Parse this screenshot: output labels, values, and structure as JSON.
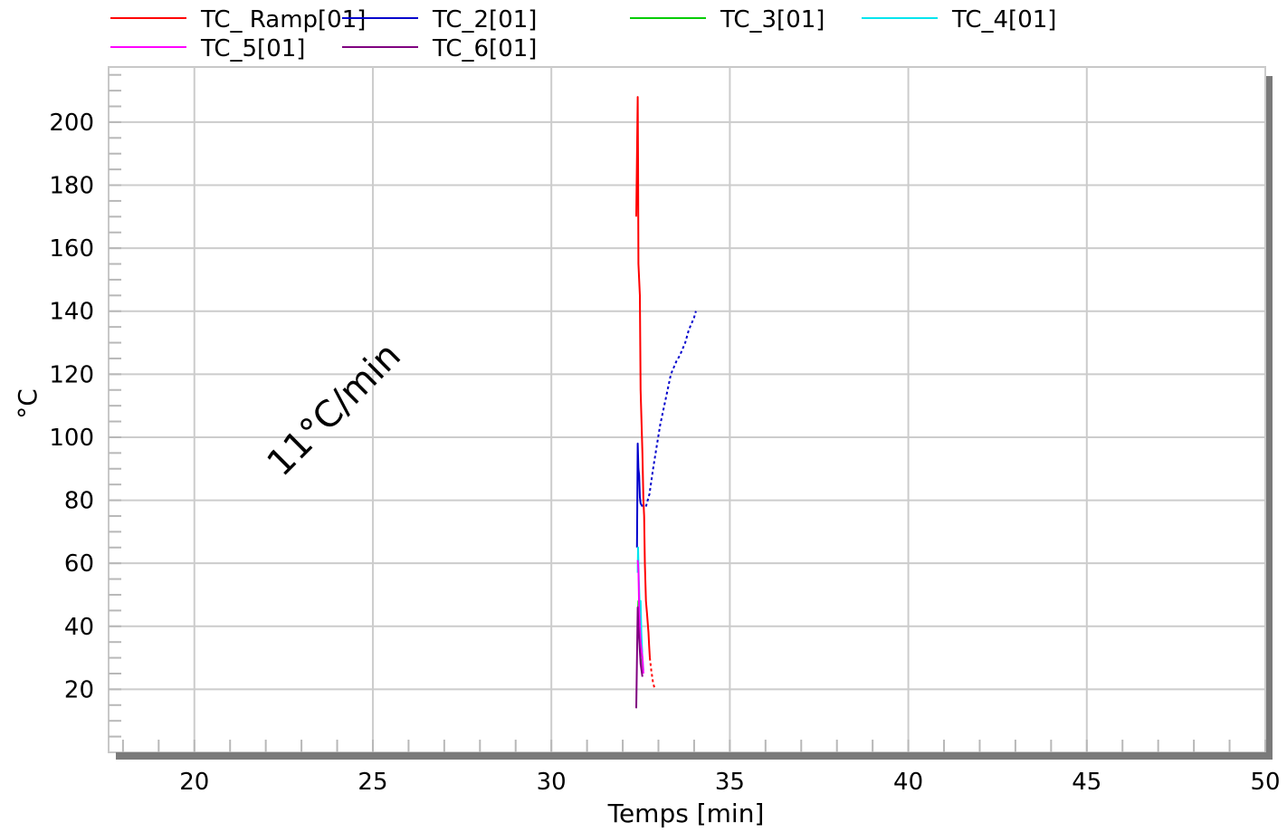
{
  "chart_data": {
    "type": "line",
    "xlabel": "Temps   [min]",
    "ylabel": "°C",
    "annotation": "11°C/min",
    "xlim": [
      17.8,
      50
    ],
    "ylim": [
      0,
      217.5
    ],
    "xticks": [
      20,
      25,
      30,
      35,
      40,
      45,
      50
    ],
    "yticks": [
      20,
      40,
      60,
      80,
      100,
      120,
      140,
      160,
      180,
      200
    ],
    "grid": true,
    "legend_position": "top",
    "series": [
      {
        "name": "TC_ Ramp[01]",
        "color": "#ff0000",
        "segments": [
          {
            "dashed": false,
            "points": [
              [
                32.38,
                170
              ],
              [
                32.42,
                208
              ],
              [
                32.43,
                188
              ],
              [
                32.44,
                155
              ],
              [
                32.48,
                145
              ],
              [
                32.5,
                115
              ],
              [
                32.55,
                95
              ],
              [
                32.58,
                80
              ],
              [
                32.6,
                75
              ],
              [
                32.62,
                60
              ],
              [
                32.65,
                48
              ],
              [
                32.68,
                44
              ],
              [
                32.72,
                38
              ],
              [
                32.74,
                34
              ],
              [
                32.76,
                30
              ]
            ]
          },
          {
            "dashed": true,
            "points": [
              [
                32.76,
                30
              ],
              [
                32.8,
                26
              ],
              [
                32.85,
                22
              ],
              [
                32.9,
                20
              ]
            ]
          }
        ]
      },
      {
        "name": "TC_2[01]",
        "color": "#0000cc",
        "segments": [
          {
            "dashed": false,
            "points": [
              [
                32.4,
                65
              ],
              [
                32.42,
                98
              ],
              [
                32.44,
                90
              ],
              [
                32.46,
                88
              ],
              [
                32.48,
                81
              ],
              [
                32.5,
                79
              ],
              [
                32.55,
                78
              ]
            ]
          },
          {
            "dashed": true,
            "points": [
              [
                32.65,
                78
              ],
              [
                32.75,
                82
              ],
              [
                32.85,
                90
              ],
              [
                32.95,
                97
              ],
              [
                33.05,
                104
              ],
              [
                33.2,
                112
              ],
              [
                33.35,
                120
              ],
              [
                33.5,
                124
              ],
              [
                33.6,
                126
              ],
              [
                33.75,
                130
              ],
              [
                33.85,
                134
              ],
              [
                34.0,
                138
              ],
              [
                34.05,
                140
              ]
            ]
          }
        ]
      },
      {
        "name": "TC_3[01]",
        "color": "#00cc00",
        "segments": [
          {
            "dashed": false,
            "points": [
              [
                32.42,
                42
              ],
              [
                32.44,
                48
              ],
              [
                32.46,
                38
              ],
              [
                32.5,
                30
              ],
              [
                32.55,
                25
              ]
            ]
          }
        ]
      },
      {
        "name": "TC_4[01]",
        "color": "#00e5ee",
        "segments": [
          {
            "dashed": false,
            "points": [
              [
                32.42,
                57
              ],
              [
                32.43,
                65
              ],
              [
                32.45,
                55
              ],
              [
                32.48,
                45
              ],
              [
                32.5,
                48
              ],
              [
                32.52,
                38
              ],
              [
                32.55,
                30
              ],
              [
                32.58,
                26
              ]
            ]
          }
        ]
      },
      {
        "name": "TC_5[01]",
        "color": "#ff00ff",
        "segments": [
          {
            "dashed": false,
            "points": [
              [
                32.42,
                61
              ],
              [
                32.44,
                58
              ],
              [
                32.46,
                45
              ],
              [
                32.5,
                35
              ],
              [
                32.55,
                30
              ],
              [
                32.58,
                25
              ]
            ]
          }
        ]
      },
      {
        "name": "TC_6[01]",
        "color": "#800080",
        "segments": [
          {
            "dashed": false,
            "points": [
              [
                32.38,
                14
              ],
              [
                32.4,
                30
              ],
              [
                32.42,
                46
              ],
              [
                32.44,
                40
              ],
              [
                32.48,
                32
              ],
              [
                32.5,
                28
              ],
              [
                32.55,
                24
              ]
            ]
          }
        ]
      }
    ]
  }
}
